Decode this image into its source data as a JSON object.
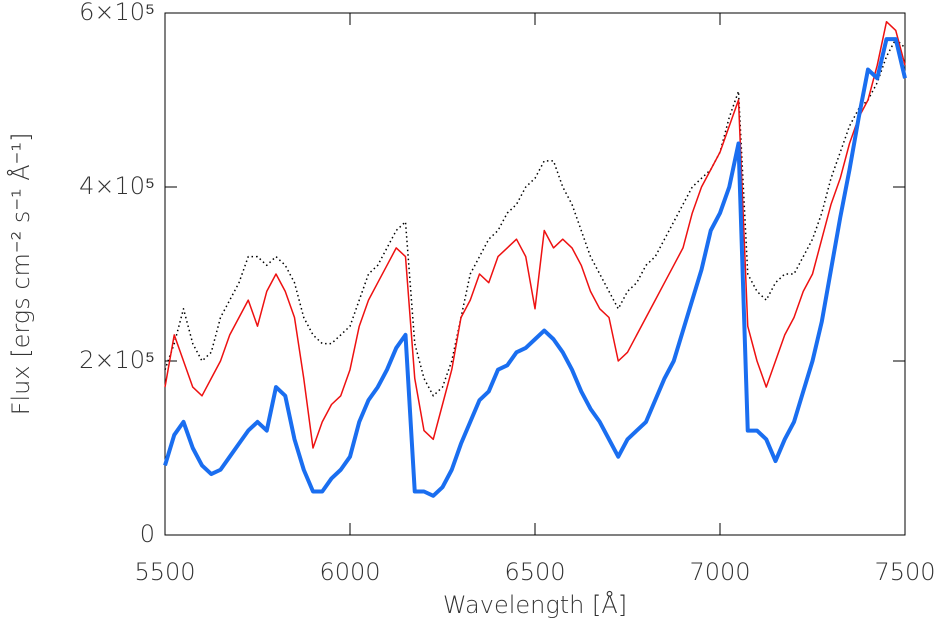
{
  "chart_data": {
    "type": "line",
    "xlabel": "Wavelength [Å]",
    "ylabel": "Flux [ergs cm⁻² s⁻¹ Å⁻¹]",
    "x": [
      5500,
      5525,
      5550,
      5575,
      5600,
      5625,
      5650,
      5675,
      5700,
      5725,
      5750,
      5775,
      5800,
      5825,
      5850,
      5875,
      5900,
      5925,
      5950,
      5975,
      6000,
      6025,
      6050,
      6075,
      6100,
      6125,
      6150,
      6175,
      6200,
      6225,
      6250,
      6275,
      6300,
      6325,
      6350,
      6375,
      6400,
      6425,
      6450,
      6475,
      6500,
      6525,
      6550,
      6575,
      6600,
      6625,
      6650,
      6675,
      6700,
      6725,
      6750,
      6775,
      6800,
      6825,
      6850,
      6875,
      6900,
      6925,
      6950,
      6975,
      7000,
      7025,
      7050,
      7075,
      7100,
      7125,
      7150,
      7175,
      7200,
      7225,
      7250,
      7275,
      7300,
      7325,
      7350,
      7375,
      7400,
      7425,
      7450,
      7475,
      7500
    ],
    "series": [
      {
        "color": "#000000",
        "dash": "dotted",
        "width": 1.5,
        "values": [
          190000,
          220000,
          260000,
          220000,
          200000,
          210000,
          250000,
          270000,
          290000,
          320000,
          320000,
          310000,
          320000,
          310000,
          290000,
          250000,
          230000,
          220000,
          220000,
          230000,
          240000,
          270000,
          300000,
          310000,
          330000,
          350000,
          360000,
          220000,
          180000,
          160000,
          170000,
          200000,
          250000,
          300000,
          320000,
          340000,
          350000,
          370000,
          380000,
          400000,
          410000,
          430000,
          430000,
          400000,
          380000,
          350000,
          320000,
          300000,
          280000,
          260000,
          280000,
          290000,
          310000,
          320000,
          340000,
          360000,
          380000,
          400000,
          410000,
          420000,
          440000,
          480000,
          510000,
          300000,
          280000,
          270000,
          290000,
          300000,
          300000,
          320000,
          340000,
          370000,
          410000,
          440000,
          470000,
          490000,
          500000,
          520000,
          550000,
          570000,
          560000
        ]
      },
      {
        "color": "#ee1111",
        "dash": "solid",
        "width": 1.5,
        "values": [
          170000,
          230000,
          200000,
          170000,
          160000,
          180000,
          200000,
          230000,
          250000,
          270000,
          240000,
          280000,
          300000,
          280000,
          250000,
          180000,
          100000,
          130000,
          150000,
          160000,
          190000,
          240000,
          270000,
          290000,
          310000,
          330000,
          320000,
          180000,
          120000,
          110000,
          150000,
          190000,
          250000,
          270000,
          300000,
          290000,
          320000,
          330000,
          340000,
          320000,
          260000,
          350000,
          330000,
          340000,
          330000,
          310000,
          280000,
          260000,
          250000,
          200000,
          210000,
          230000,
          250000,
          270000,
          290000,
          310000,
          330000,
          370000,
          400000,
          420000,
          440000,
          470000,
          500000,
          240000,
          200000,
          170000,
          200000,
          230000,
          250000,
          280000,
          300000,
          340000,
          380000,
          410000,
          450000,
          480000,
          500000,
          540000,
          590000,
          580000,
          540000
        ]
      },
      {
        "color": "#1a6ef0",
        "dash": "solid",
        "width": 4,
        "values": [
          80000,
          115000,
          130000,
          100000,
          80000,
          70000,
          75000,
          90000,
          105000,
          120000,
          130000,
          120000,
          170000,
          160000,
          110000,
          75000,
          50000,
          50000,
          65000,
          75000,
          90000,
          130000,
          155000,
          170000,
          190000,
          215000,
          230000,
          50000,
          50000,
          45000,
          55000,
          75000,
          105000,
          130000,
          155000,
          165000,
          190000,
          195000,
          210000,
          215000,
          225000,
          235000,
          225000,
          210000,
          190000,
          165000,
          145000,
          130000,
          110000,
          90000,
          110000,
          120000,
          130000,
          155000,
          180000,
          200000,
          235000,
          270000,
          305000,
          350000,
          370000,
          400000,
          450000,
          120000,
          120000,
          110000,
          85000,
          110000,
          130000,
          165000,
          200000,
          245000,
          305000,
          365000,
          420000,
          480000,
          535000,
          525000,
          570000,
          570000,
          525000
        ]
      }
    ],
    "xlim": [
      5500,
      7500
    ],
    "xticks": [
      5500,
      6000,
      6500,
      7000,
      7500
    ],
    "ylim": [
      0,
      600000
    ],
    "yticks": [
      0,
      {
        "value": 200000,
        "label": "2×10⁵"
      },
      {
        "value": 400000,
        "label": "4×10⁵"
      },
      {
        "value": 600000,
        "label": "6×10⁵"
      }
    ]
  }
}
